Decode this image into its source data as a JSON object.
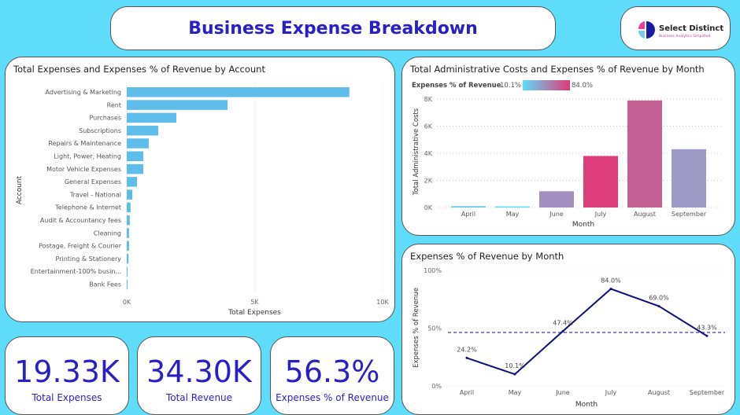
{
  "header": {
    "title": "Business Expense Breakdown",
    "logo_text": "Select Distinct",
    "logo_sub": "Business Analytics Simplified"
  },
  "kpis": [
    {
      "value": "19.33K",
      "label": "Total Expenses"
    },
    {
      "value": "34.30K",
      "label": "Total Revenue"
    },
    {
      "value": "56.3%",
      "label": "Expenses % of Revenue"
    }
  ],
  "chart_data": [
    {
      "type": "bar",
      "orientation": "horizontal",
      "title": "Total Expenses and Expenses % of Revenue by Account",
      "xlabel": "Total Expenses",
      "ylabel": "Account",
      "xlim": [
        0,
        10000
      ],
      "x_ticks": [
        "0K",
        "5K",
        "10K"
      ],
      "color": "#5fbdeb",
      "categories": [
        "Advertising & Marketing",
        "Rent",
        "Purchases",
        "Subscriptions",
        "Repairs & Maintenance",
        "Light, Power, Heating",
        "Motor Vehicle Expenses",
        "General Expenses",
        "Travel - National",
        "Telephone & Internet",
        "Audit & Accountancy fees",
        "Cleaning",
        "Postage, Freight & Courier",
        "Printing & Stationery",
        "Entertainment-100% busin...",
        "Bank Fees"
      ],
      "values": [
        8700,
        3940,
        1940,
        1230,
        860,
        650,
        650,
        400,
        220,
        150,
        120,
        90,
        90,
        70,
        30,
        20
      ]
    },
    {
      "type": "bar",
      "title": "Total Administrative Costs and Expenses % of Revenue by Month",
      "xlabel": "Month",
      "ylabel": "Total Administrative Costs",
      "ylim": [
        0,
        8000
      ],
      "y_ticks": [
        "0K",
        "2K",
        "4K",
        "6K",
        "8K"
      ],
      "legend": {
        "title": "Expenses % of Revenue",
        "min": "10.1%",
        "max": "84.0%",
        "min_color": "#5fdcf9",
        "max_color": "#e03a78"
      },
      "categories": [
        "April",
        "May",
        "June",
        "July",
        "August",
        "September"
      ],
      "values": [
        100,
        80,
        1200,
        3800,
        7900,
        4300
      ],
      "colors": [
        "#6cc8ef",
        "#5fdcf9",
        "#a38fbf",
        "#dd3d7b",
        "#c46093",
        "#9d9bc6"
      ]
    },
    {
      "type": "line",
      "title": "Expenses % of Revenue by Month",
      "xlabel": "Month",
      "ylabel": "Expenses % of Revenue",
      "ylim": [
        0,
        100
      ],
      "y_ticks": [
        "0%",
        "50%",
        "100%"
      ],
      "average_line": 46.3,
      "color": "#0c0f7c",
      "categories": [
        "April",
        "May",
        "June",
        "July",
        "August",
        "September"
      ],
      "values": [
        24.2,
        10.1,
        47.4,
        84.0,
        69.0,
        43.3
      ],
      "labels": [
        "24.2%",
        "10.1%",
        "47.4%",
        "84.0%",
        "69.0%",
        "43.3%"
      ]
    }
  ]
}
